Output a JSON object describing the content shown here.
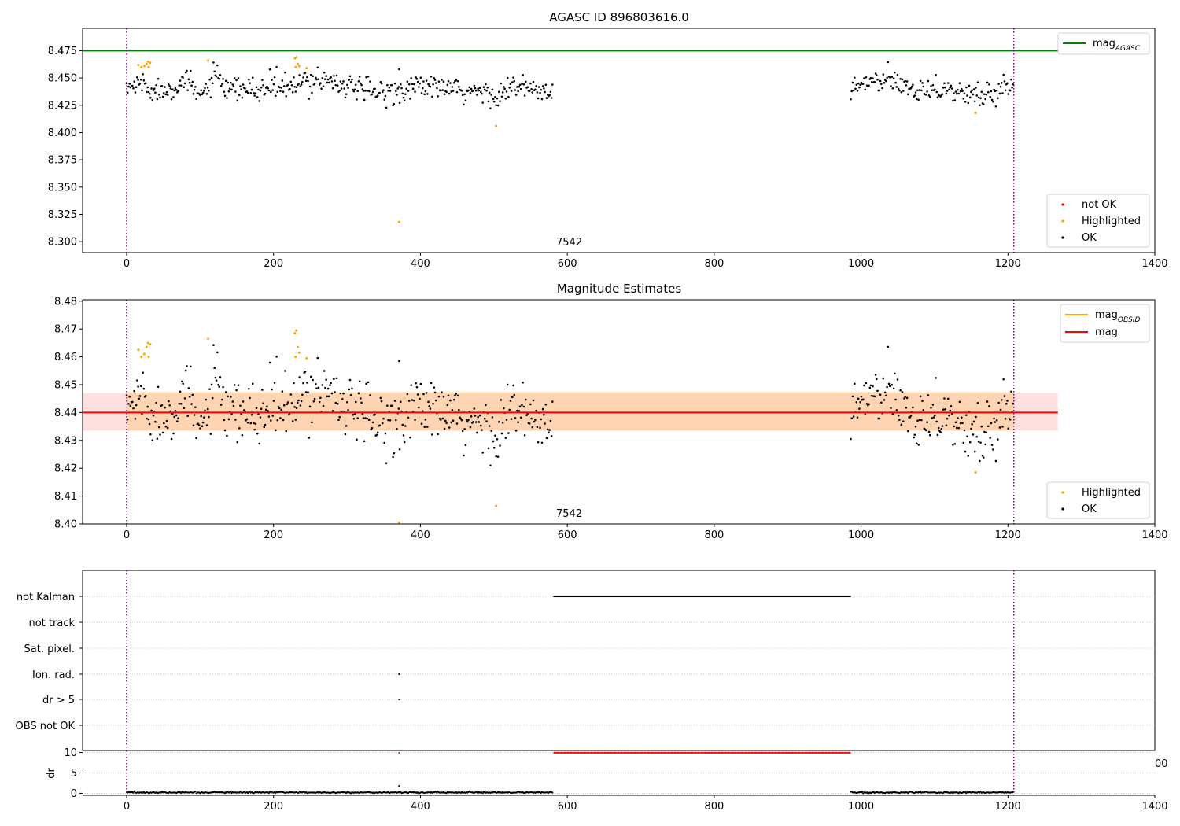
{
  "chart_data": [
    {
      "id": "top",
      "type": "scatter",
      "title": "AGASC ID 896803616.0",
      "xlim": [
        -60,
        1400
      ],
      "ylim": [
        8.29,
        8.4955
      ],
      "xticks": [
        "0",
        "200",
        "400",
        "600",
        "800",
        "1000",
        "1200",
        "1400"
      ],
      "xtick_values": [
        0,
        200,
        400,
        600,
        800,
        1000,
        1200,
        1400
      ],
      "yticks": [
        "8.300",
        "8.325",
        "8.350",
        "8.375",
        "8.400",
        "8.425",
        "8.450",
        "8.475"
      ],
      "ytick_values": [
        8.3,
        8.325,
        8.35,
        8.375,
        8.4,
        8.425,
        8.45,
        8.475
      ],
      "obsid_boundaries": [
        0,
        1208
      ],
      "mag_agasc": 8.475,
      "mag_agasc_xrange": [
        -60,
        1268
      ],
      "obsid_label": "7542",
      "obsid_label_x": 584,
      "obsid_label_y": 8.297,
      "legend_lines": [
        {
          "label": "mag",
          "sub": "AGASC",
          "color": "#008000"
        }
      ],
      "legend_points": [
        {
          "label": "not OK",
          "color": "#ff0000"
        },
        {
          "label": "Highlighted",
          "color": "#ffa500"
        },
        {
          "label": "OK",
          "color": "#000000"
        }
      ],
      "segments": [
        {
          "x_start": 0,
          "x_end": 581
        },
        {
          "x_start": 986,
          "x_end": 1208
        }
      ],
      "ok_series": [
        {
          "x": 0,
          "y": 8.44
        },
        {
          "x": 20,
          "y": 8.446
        },
        {
          "x": 40,
          "y": 8.437
        },
        {
          "x": 60,
          "y": 8.442
        },
        {
          "x": 80,
          "y": 8.447
        },
        {
          "x": 100,
          "y": 8.433
        },
        {
          "x": 120,
          "y": 8.451
        },
        {
          "x": 140,
          "y": 8.437
        },
        {
          "x": 160,
          "y": 8.44
        },
        {
          "x": 180,
          "y": 8.438
        },
        {
          "x": 200,
          "y": 8.444
        },
        {
          "x": 220,
          "y": 8.44
        },
        {
          "x": 240,
          "y": 8.445
        },
        {
          "x": 260,
          "y": 8.45
        },
        {
          "x": 280,
          "y": 8.448
        },
        {
          "x": 300,
          "y": 8.443
        },
        {
          "x": 320,
          "y": 8.438
        },
        {
          "x": 340,
          "y": 8.437
        },
        {
          "x": 360,
          "y": 8.438
        },
        {
          "x": 380,
          "y": 8.44
        },
        {
          "x": 400,
          "y": 8.443
        },
        {
          "x": 420,
          "y": 8.441
        },
        {
          "x": 440,
          "y": 8.44
        },
        {
          "x": 460,
          "y": 8.436
        },
        {
          "x": 480,
          "y": 8.438
        },
        {
          "x": 500,
          "y": 8.434
        },
        {
          "x": 520,
          "y": 8.44
        },
        {
          "x": 540,
          "y": 8.441
        },
        {
          "x": 560,
          "y": 8.438
        },
        {
          "x": 580,
          "y": 8.436
        },
        {
          "x": 990,
          "y": 8.441
        },
        {
          "x": 1010,
          "y": 8.446
        },
        {
          "x": 1030,
          "y": 8.447
        },
        {
          "x": 1050,
          "y": 8.445
        },
        {
          "x": 1070,
          "y": 8.44
        },
        {
          "x": 1090,
          "y": 8.441
        },
        {
          "x": 1110,
          "y": 8.44
        },
        {
          "x": 1130,
          "y": 8.437
        },
        {
          "x": 1150,
          "y": 8.434
        },
        {
          "x": 1170,
          "y": 8.434
        },
        {
          "x": 1190,
          "y": 8.44
        },
        {
          "x": 1208,
          "y": 8.444
        }
      ],
      "highlighted": [
        {
          "x": 16,
          "y": 8.462
        },
        {
          "x": 20,
          "y": 8.46
        },
        {
          "x": 24,
          "y": 8.461
        },
        {
          "x": 27,
          "y": 8.463
        },
        {
          "x": 29,
          "y": 8.465
        },
        {
          "x": 30,
          "y": 8.46
        },
        {
          "x": 32,
          "y": 8.464
        },
        {
          "x": 111,
          "y": 8.466
        },
        {
          "x": 229,
          "y": 8.468
        },
        {
          "x": 231,
          "y": 8.469
        },
        {
          "x": 233,
          "y": 8.463
        },
        {
          "x": 230,
          "y": 8.46
        },
        {
          "x": 235,
          "y": 8.461
        },
        {
          "x": 245,
          "y": 8.459
        },
        {
          "x": 371,
          "y": 8.318
        },
        {
          "x": 503,
          "y": 8.406
        },
        {
          "x": 1156,
          "y": 8.418
        }
      ],
      "outliers": [
        {
          "x": 371,
          "y": 8.458
        }
      ]
    },
    {
      "id": "middle",
      "type": "scatter",
      "title": "Magnitude Estimates",
      "xlim": [
        -60,
        1400
      ],
      "ylim": [
        8.4,
        8.4805
      ],
      "xticks": [
        "0",
        "200",
        "400",
        "600",
        "800",
        "1000",
        "1200",
        "1400"
      ],
      "xtick_values": [
        0,
        200,
        400,
        600,
        800,
        1000,
        1200,
        1400
      ],
      "yticks": [
        "8.40",
        "8.41",
        "8.42",
        "8.43",
        "8.44",
        "8.45",
        "8.46",
        "8.47",
        "8.48"
      ],
      "ytick_values": [
        8.4,
        8.41,
        8.42,
        8.43,
        8.44,
        8.45,
        8.46,
        8.47,
        8.48
      ],
      "obsid_boundaries": [
        0,
        1208
      ],
      "mag": 8.44,
      "mag_band": [
        8.4335,
        8.447
      ],
      "mag_xrange": [
        -60,
        1268
      ],
      "mag_obsid": 8.44,
      "mag_obsid_band": [
        8.4335,
        8.4475
      ],
      "mag_obsid_xrange": [
        0,
        1208
      ],
      "obsid_label": "7542",
      "obsid_label_x": 584,
      "obsid_label_y": 8.4025,
      "legend_lines": [
        {
          "label": "mag",
          "sub": "OBSID",
          "color": "#ffa500"
        },
        {
          "label": "mag",
          "sub": "",
          "color": "#ff0000"
        }
      ],
      "legend_points": [
        {
          "label": "Highlighted",
          "color": "#ffa500"
        },
        {
          "label": "OK",
          "color": "#000000"
        }
      ],
      "segments": [
        {
          "x_start": 0,
          "x_end": 581
        },
        {
          "x_start": 986,
          "x_end": 1208
        }
      ],
      "ok_series": [
        {
          "x": 0,
          "y": 8.441
        },
        {
          "x": 20,
          "y": 8.447
        },
        {
          "x": 40,
          "y": 8.437
        },
        {
          "x": 60,
          "y": 8.442
        },
        {
          "x": 80,
          "y": 8.447
        },
        {
          "x": 100,
          "y": 8.433
        },
        {
          "x": 120,
          "y": 8.451
        },
        {
          "x": 140,
          "y": 8.437
        },
        {
          "x": 160,
          "y": 8.44
        },
        {
          "x": 180,
          "y": 8.438
        },
        {
          "x": 200,
          "y": 8.444
        },
        {
          "x": 220,
          "y": 8.44
        },
        {
          "x": 240,
          "y": 8.445
        },
        {
          "x": 260,
          "y": 8.45
        },
        {
          "x": 280,
          "y": 8.448
        },
        {
          "x": 300,
          "y": 8.443
        },
        {
          "x": 320,
          "y": 8.438
        },
        {
          "x": 340,
          "y": 8.436
        },
        {
          "x": 360,
          "y": 8.437
        },
        {
          "x": 380,
          "y": 8.44
        },
        {
          "x": 400,
          "y": 8.443
        },
        {
          "x": 420,
          "y": 8.44
        },
        {
          "x": 440,
          "y": 8.439
        },
        {
          "x": 460,
          "y": 8.435
        },
        {
          "x": 480,
          "y": 8.436
        },
        {
          "x": 500,
          "y": 8.433
        },
        {
          "x": 520,
          "y": 8.44
        },
        {
          "x": 540,
          "y": 8.439
        },
        {
          "x": 560,
          "y": 8.436
        },
        {
          "x": 580,
          "y": 8.436
        },
        {
          "x": 990,
          "y": 8.441
        },
        {
          "x": 1010,
          "y": 8.446
        },
        {
          "x": 1030,
          "y": 8.446
        },
        {
          "x": 1050,
          "y": 8.444
        },
        {
          "x": 1070,
          "y": 8.438
        },
        {
          "x": 1090,
          "y": 8.44
        },
        {
          "x": 1110,
          "y": 8.44
        },
        {
          "x": 1130,
          "y": 8.436
        },
        {
          "x": 1150,
          "y": 8.431
        },
        {
          "x": 1170,
          "y": 8.432
        },
        {
          "x": 1190,
          "y": 8.439
        },
        {
          "x": 1208,
          "y": 8.443
        }
      ],
      "highlighted": [
        {
          "x": 16,
          "y": 8.4625
        },
        {
          "x": 20,
          "y": 8.46
        },
        {
          "x": 24,
          "y": 8.461
        },
        {
          "x": 27,
          "y": 8.4635
        },
        {
          "x": 29,
          "y": 8.465
        },
        {
          "x": 30,
          "y": 8.46
        },
        {
          "x": 32,
          "y": 8.4645
        },
        {
          "x": 111,
          "y": 8.4665
        },
        {
          "x": 229,
          "y": 8.4685
        },
        {
          "x": 231,
          "y": 8.4695
        },
        {
          "x": 233,
          "y": 8.4635
        },
        {
          "x": 230,
          "y": 8.46
        },
        {
          "x": 235,
          "y": 8.4615
        },
        {
          "x": 245,
          "y": 8.4595
        },
        {
          "x": 371,
          "y": 8.4005
        },
        {
          "x": 503,
          "y": 8.4065
        },
        {
          "x": 1156,
          "y": 8.4185
        }
      ],
      "outliers": [
        {
          "x": 371,
          "y": 8.4585
        }
      ]
    },
    {
      "id": "flags",
      "type": "scatter",
      "xlim": [
        -60,
        1400
      ],
      "flags": [
        "not Kalman",
        "not track",
        "Sat. pixel.",
        "Ion. rad.",
        "dr > 5",
        "OBS not OK"
      ],
      "obsid_boundaries": [
        0,
        1208
      ],
      "not_kalman_range": [
        582,
        986
      ],
      "point_flags": [
        {
          "flag": "Ion. rad.",
          "x": 371
        },
        {
          "flag": "dr > 5",
          "x": 371
        }
      ]
    },
    {
      "id": "dr",
      "type": "scatter",
      "xlim": [
        -60,
        1400
      ],
      "ylim": [
        -0.5,
        10.5
      ],
      "ylabel": "dr",
      "yticks": [
        "0",
        "5",
        "10"
      ],
      "ytick_values": [
        0,
        5,
        10
      ],
      "xticks": [
        "0",
        "200",
        "400",
        "600",
        "800",
        "1000",
        "1200",
        "1400"
      ],
      "xtick_values": [
        0,
        200,
        400,
        600,
        800,
        1000,
        1200,
        1400
      ],
      "clipped_tick_label": "00",
      "obsid_boundaries": [
        0,
        1208
      ],
      "capped_range": [
        582,
        986
      ],
      "capped_value": 10,
      "capped_points": [
        {
          "x": 371,
          "y": 10
        }
      ],
      "dr_segments": [
        {
          "x_start": 0,
          "x_end": 581
        },
        {
          "x_start": 986,
          "x_end": 1208
        }
      ],
      "dr_level": 0.2,
      "dr_spikes": [
        {
          "x": 371,
          "y": 1.8
        }
      ]
    }
  ]
}
